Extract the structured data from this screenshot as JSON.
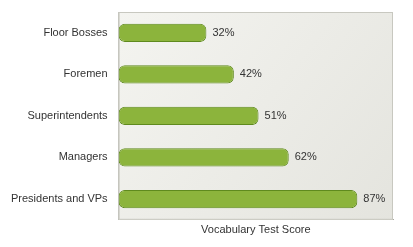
{
  "chart_data": {
    "type": "bar",
    "orientation": "horizontal",
    "categories": [
      "Floor Bosses",
      "Foremen",
      "Superintendents",
      "Managers",
      "Presidents and VPs"
    ],
    "values": [
      32,
      42,
      51,
      62,
      87
    ],
    "value_labels": [
      "32%",
      "42%",
      "51%",
      "62%",
      "87%"
    ],
    "data_labels": true,
    "color": "#8cb43c",
    "xlabel": "Vocabulary Test Score",
    "xlim": [
      0,
      100
    ],
    "grid": false,
    "tick_labels": "y"
  }
}
